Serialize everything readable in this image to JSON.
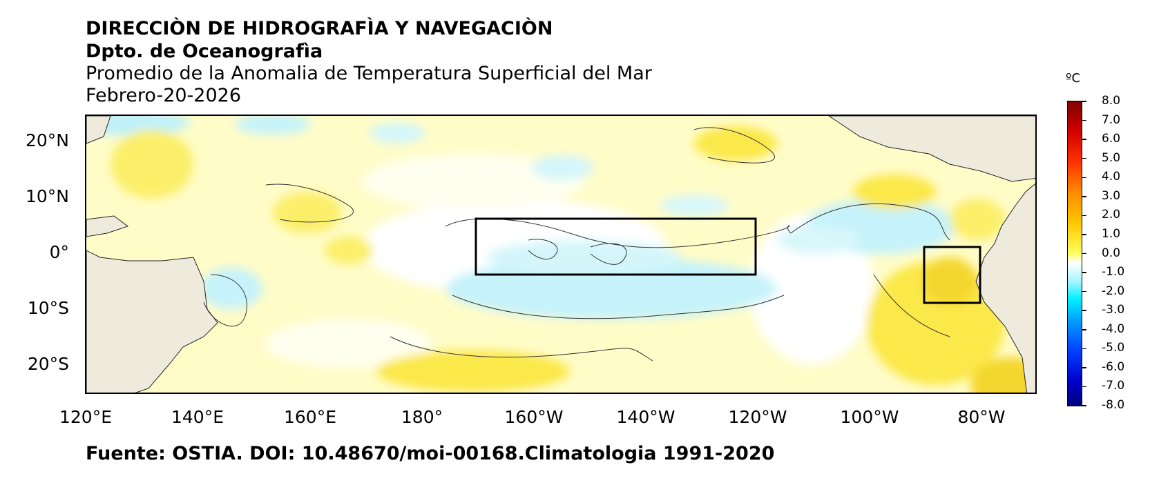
{
  "header": {
    "title_line1": "DIRECCIÒN DE HIDROGRAFÌA Y NAVEGACIÒN",
    "title_line2": "Dpto. de Oceanografìa",
    "title_line3": "Promedio de la Anomalia de Temperatura Superficial del Mar",
    "date": "Febrero-20-2026"
  },
  "map": {
    "region": "Tropical Pacific Ocean",
    "lon_range": [
      120,
      290
    ],
    "lat_range": [
      -25,
      25
    ],
    "lat_labels": [
      "20°N",
      "10°N",
      "0°",
      "10°S",
      "20°S"
    ],
    "lon_labels": [
      "120°E",
      "140°E",
      "160°E",
      "180°",
      "160°W",
      "140°W",
      "120°W",
      "100°W",
      "80°W"
    ],
    "boxes": [
      {
        "name": "nino-3-4-region",
        "lon": [
          -170,
          -120
        ],
        "lat": [
          -5,
          5
        ]
      },
      {
        "name": "nino-1-2-region",
        "lon": [
          -90,
          -80
        ],
        "lat": [
          -10,
          0
        ]
      }
    ],
    "colors": {
      "land": "#eeebdc",
      "warm": "#fff27a",
      "neutral": "#fffde8",
      "cool": "#c8f4fb"
    }
  },
  "colorbar": {
    "unit": "ºC",
    "ticks": [
      "8.0",
      "7.0",
      "6.0",
      "5.0",
      "4.0",
      "3.0",
      "2.0",
      "1.0",
      "0.0",
      "-1.0",
      "-2.0",
      "-3.0",
      "-4.0",
      "-5.0",
      "-6.0",
      "-7.0",
      "-8.0"
    ],
    "range": [
      -8.0,
      8.0
    ]
  },
  "footer": {
    "source": "Fuente: OSTIA. DOI: 10.48670/moi-00168.Climatologia 1991-2020"
  }
}
